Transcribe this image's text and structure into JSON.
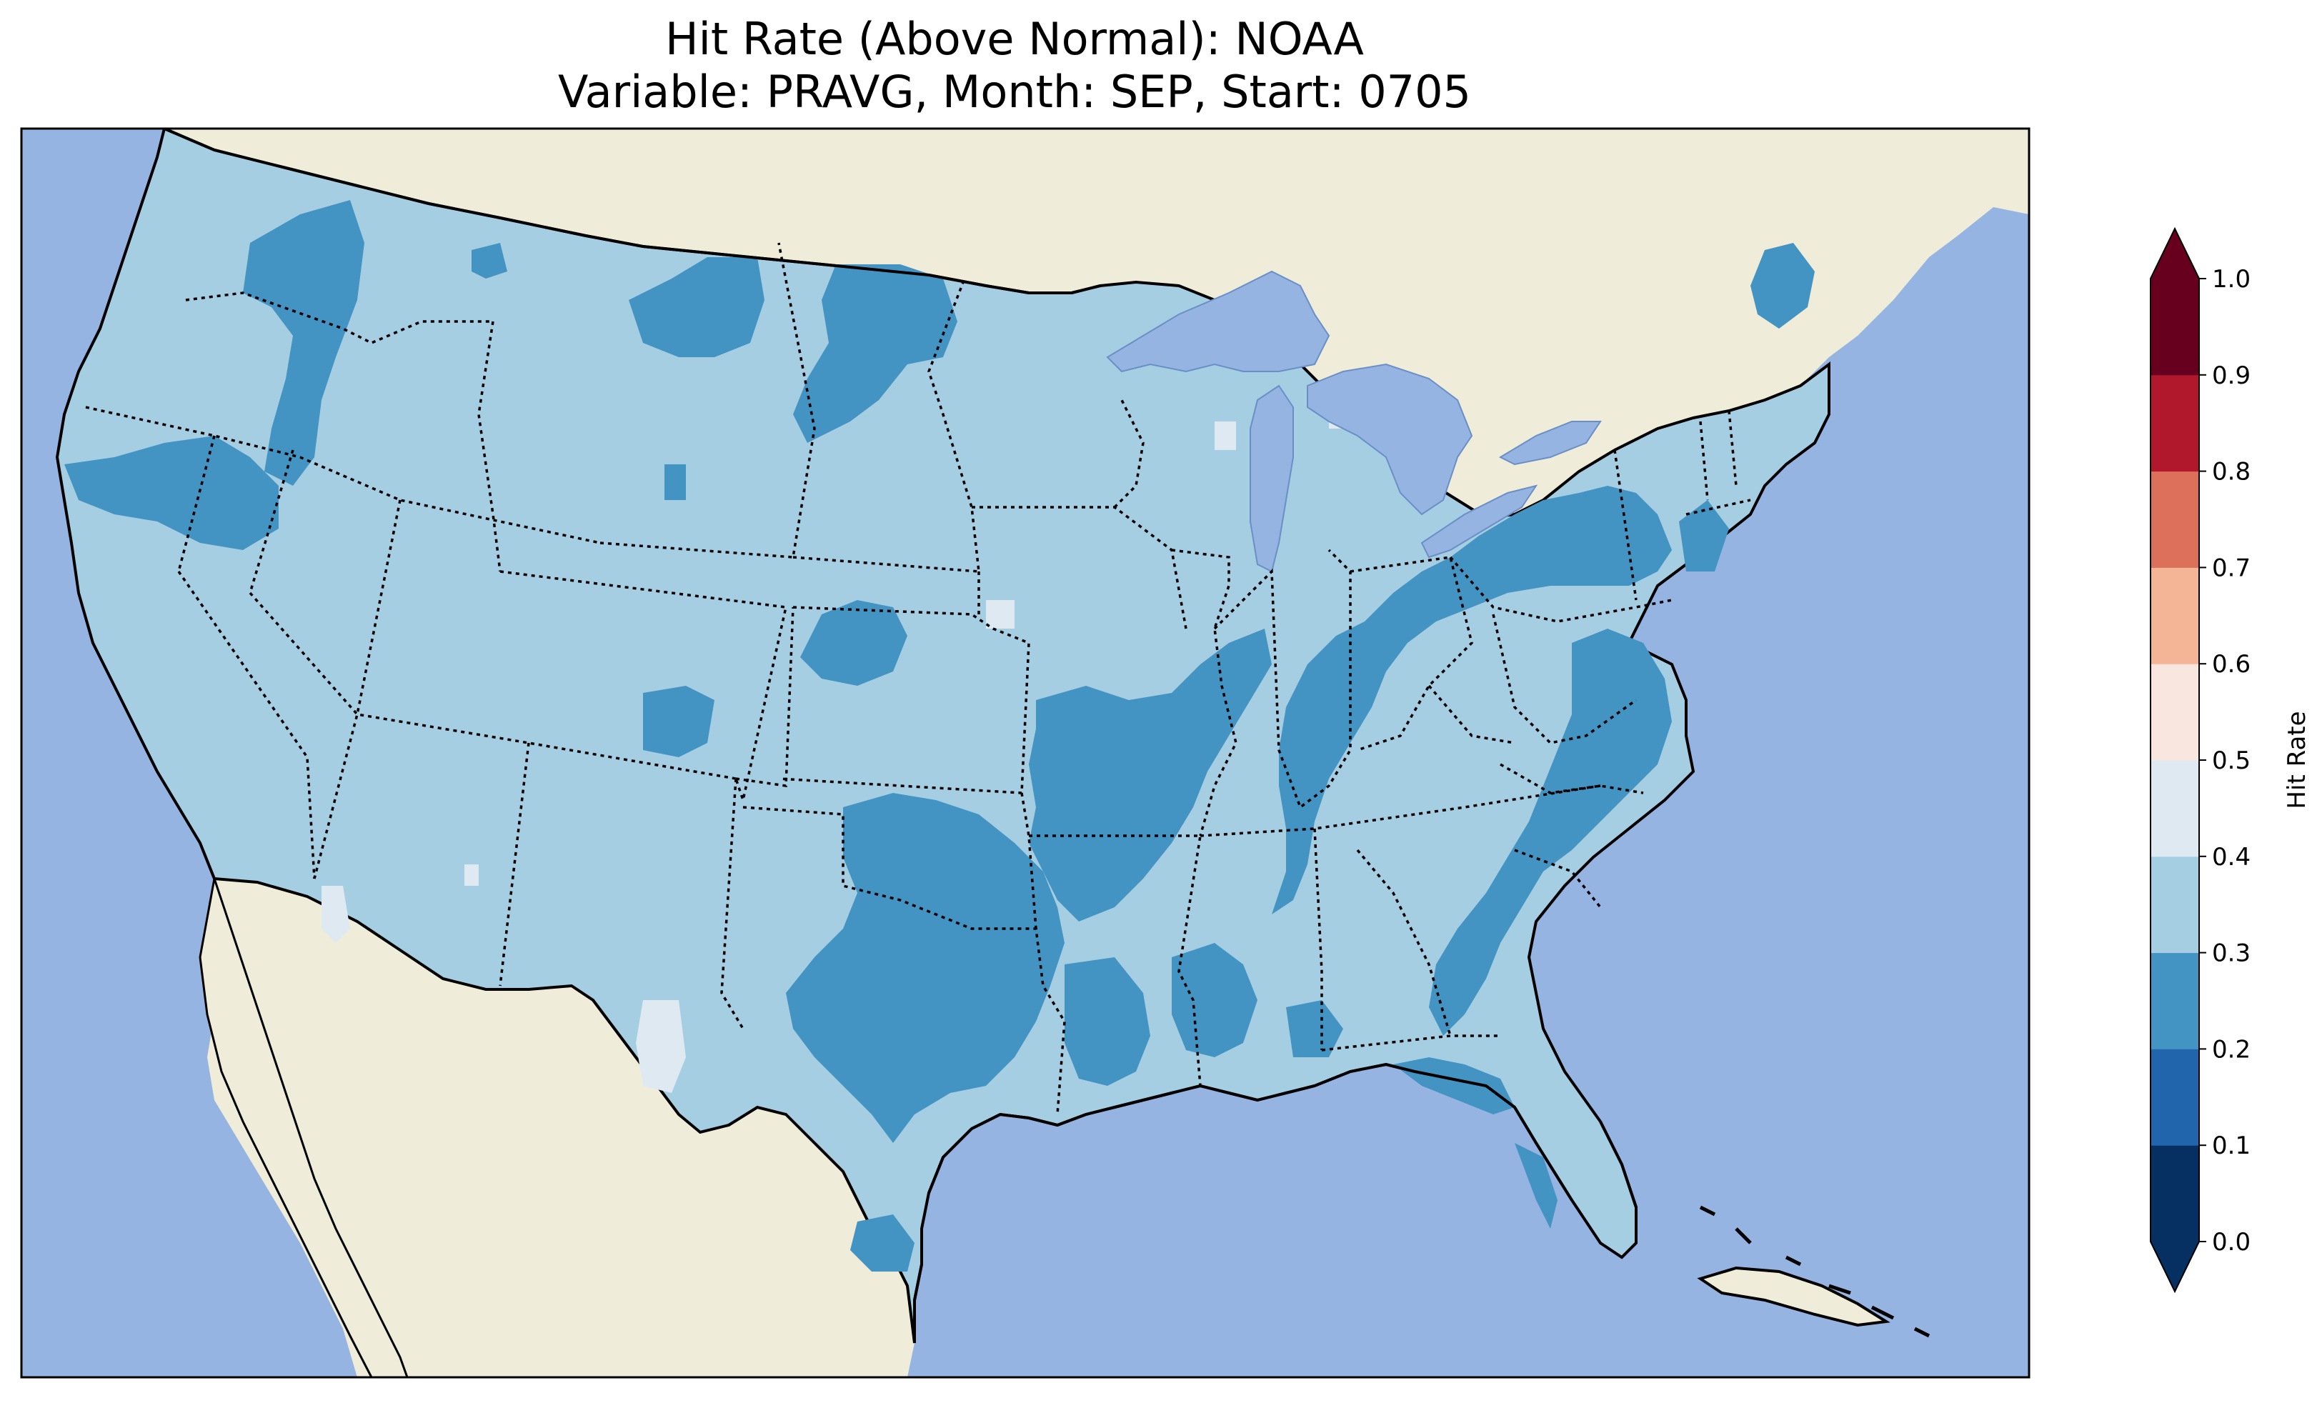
{
  "title": {
    "line1": "Hit Rate (Above Normal): NOAA",
    "line2": "Variable: PRAVG, Month: SEP, Start: 0705"
  },
  "map": {
    "region": "Contiguous United States",
    "projection": "Lambert conformal",
    "background": {
      "ocean": "#95b4e2",
      "land": "#efedda",
      "lakes": "#95b4e2"
    },
    "dominant_classes": [
      "0.3–0.4",
      "0.2–0.3"
    ],
    "borders": {
      "coastline": "solid",
      "country": "solid",
      "states": "dotted"
    }
  },
  "colorbar": {
    "label": "Hit Rate",
    "ticks": [
      "0.0",
      "0.1",
      "0.2",
      "0.3",
      "0.4",
      "0.5",
      "0.6",
      "0.7",
      "0.8",
      "0.9",
      "1.0"
    ],
    "extend": "both",
    "under_color": "#053061",
    "over_color": "#67001f",
    "bins": [
      {
        "range": [
          0.0,
          0.1
        ],
        "color": "#053061"
      },
      {
        "range": [
          0.1,
          0.2
        ],
        "color": "#2166ac"
      },
      {
        "range": [
          0.2,
          0.3
        ],
        "color": "#4393c3"
      },
      {
        "range": [
          0.3,
          0.4
        ],
        "color": "#a6cee3"
      },
      {
        "range": [
          0.4,
          0.5
        ],
        "color": "#dfe9f2"
      },
      {
        "range": [
          0.5,
          0.6
        ],
        "color": "#f9e6de"
      },
      {
        "range": [
          0.6,
          0.7
        ],
        "color": "#f4b596"
      },
      {
        "range": [
          0.7,
          0.8
        ],
        "color": "#dd705a"
      },
      {
        "range": [
          0.8,
          0.9
        ],
        "color": "#b2182b"
      },
      {
        "range": [
          0.9,
          1.0
        ],
        "color": "#67001f"
      }
    ]
  }
}
